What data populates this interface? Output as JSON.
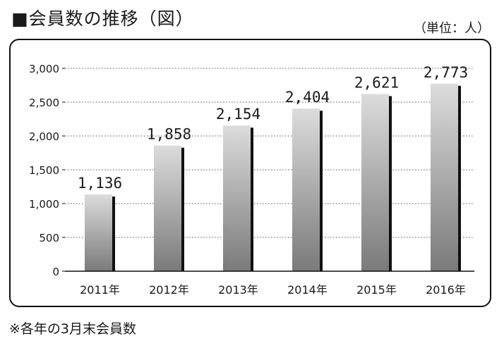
{
  "title": "■会員数の推移（図）",
  "unit_label": "（単位：人）",
  "footnote": "※各年の3月末会員数",
  "chart_data": {
    "type": "bar",
    "title": "会員数の推移（図）",
    "unit": "人",
    "categories": [
      "2011年",
      "2012年",
      "2013年",
      "2014年",
      "2015年",
      "2016年"
    ],
    "values": [
      1136,
      1858,
      2154,
      2404,
      2621,
      2773
    ],
    "value_labels": [
      "1,136",
      "1,858",
      "2,154",
      "2,404",
      "2,621",
      "2,773"
    ],
    "ylim": [
      0,
      3000
    ],
    "yticks": [
      0,
      500,
      1000,
      1500,
      2000,
      2500,
      3000
    ],
    "ytick_labels": [
      "0",
      "500",
      "1,000",
      "1,500",
      "2,000",
      "2,500",
      "3,000"
    ],
    "grid": "horizontal dotted",
    "legend": "none",
    "colors": {
      "bar_light": "#dcdcdc",
      "bar_dark": "#7a7a7a",
      "bar_shadow": "#111111",
      "grid": "#555555",
      "axis": "#111111"
    }
  }
}
